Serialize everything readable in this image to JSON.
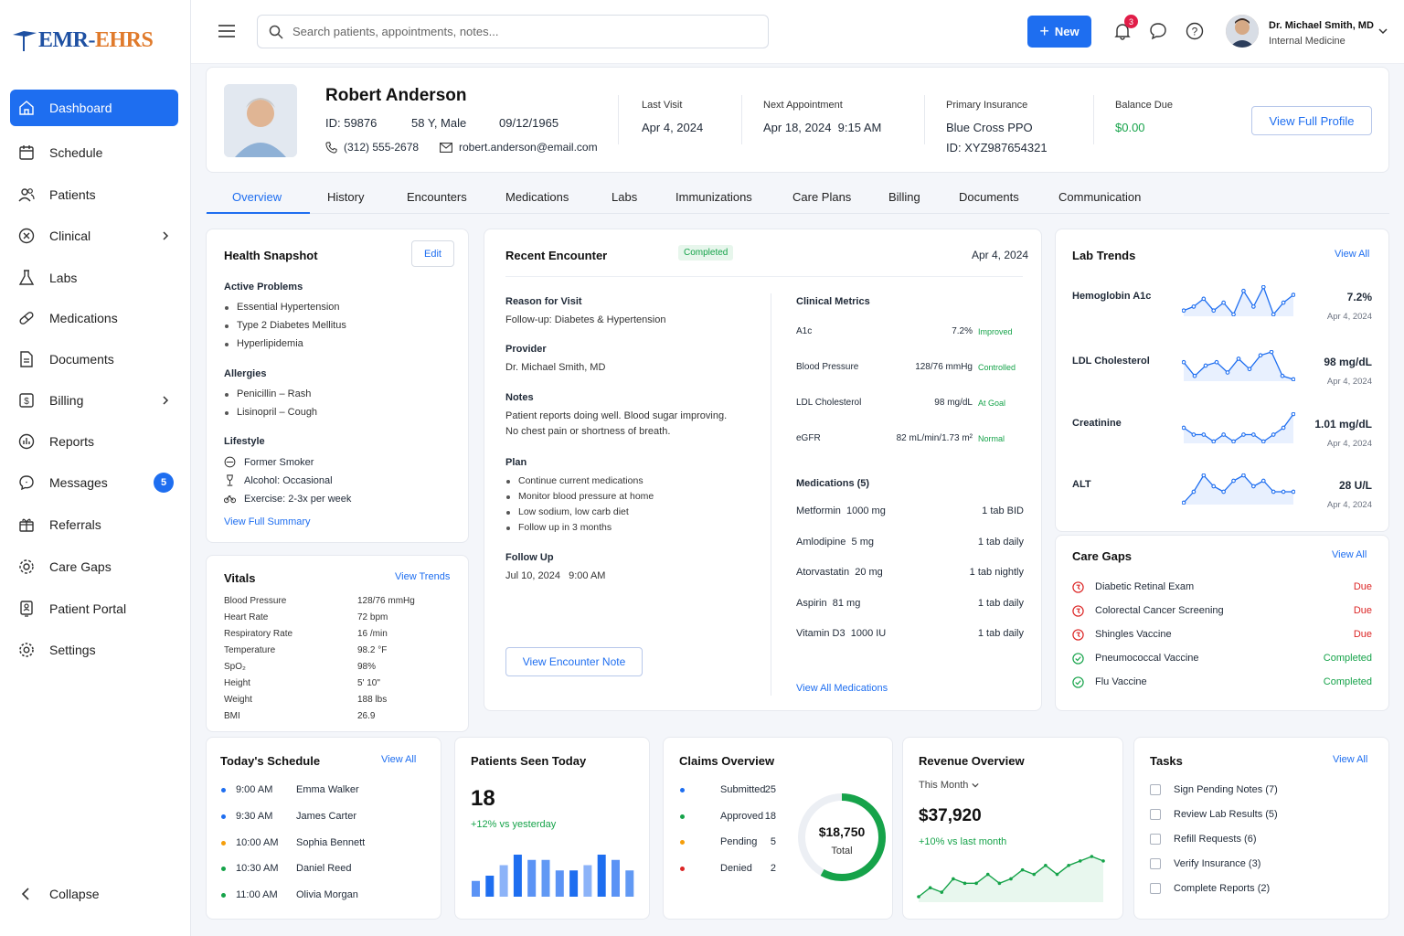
{
  "brand": {
    "logo_prefix": "EMR",
    "logo_sep": "-",
    "logo_suffix": "EHRS"
  },
  "nav": [
    {
      "label": "Dashboard",
      "icon": "home-icon",
      "active": true
    },
    {
      "label": "Schedule",
      "icon": "calendar-icon"
    },
    {
      "label": "Patients",
      "icon": "users-icon"
    },
    {
      "label": "Clinical",
      "icon": "clinical-icon",
      "chevron": true
    },
    {
      "label": "Labs",
      "icon": "flask-icon"
    },
    {
      "label": "Medications",
      "icon": "pill-icon"
    },
    {
      "label": "Documents",
      "icon": "document-icon"
    },
    {
      "label": "Billing",
      "icon": "dollar-icon",
      "chevron": true
    },
    {
      "label": "Reports",
      "icon": "report-icon"
    },
    {
      "label": "Messages",
      "icon": "chat-icon",
      "badge": "5"
    },
    {
      "label": "Referrals",
      "icon": "referral-icon"
    },
    {
      "label": "Care Gaps",
      "icon": "gear-check-icon"
    },
    {
      "label": "Patient Portal",
      "icon": "portal-icon"
    },
    {
      "label": "Settings",
      "icon": "gear-icon"
    }
  ],
  "collapse_label": "Collapse",
  "topbar": {
    "search_placeholder": "Search patients, appointments, notes...",
    "new_label": "New",
    "notif_count": "3",
    "user_name": "Dr. Michael Smith, MD",
    "user_role": "Internal Medicine"
  },
  "patient": {
    "name": "Robert Anderson",
    "id": "ID: 59876",
    "age_sex": "58 Y, Male",
    "dob": "09/12/1965",
    "phone": "(312) 555-2678",
    "email": "robert.anderson@email.com",
    "last_visit_label": "Last Visit",
    "last_visit": "Apr 4, 2024",
    "next_appt_label": "Next Appointment",
    "next_appt": "Apr 18, 2024  9:15 AM",
    "insurance_label": "Primary Insurance",
    "insurance": "Blue Cross PPO",
    "insurance_id": "ID: XYZ987654321",
    "balance_label": "Balance Due",
    "balance": "$0.00",
    "profile_btn": "View Full Profile"
  },
  "tabs": [
    "Overview",
    "History",
    "Encounters",
    "Medications",
    "Labs",
    "Immunizations",
    "Care Plans",
    "Billing",
    "Documents",
    "Communication"
  ],
  "snapshot": {
    "title": "Health Snapshot",
    "edit": "Edit",
    "problems_title": "Active Problems",
    "problems": [
      "Essential Hypertension",
      "Type 2 Diabetes Mellitus",
      "Hyperlipidemia"
    ],
    "allergies_title": "Allergies",
    "allergies": [
      "Penicillin – Rash",
      "Lisinopril – Cough"
    ],
    "lifestyle_title": "Lifestyle",
    "lifestyle": [
      "Former Smoker",
      "Alcohol: Occasional",
      "Exercise: 2-3x per week"
    ],
    "summary_link": "View Full Summary"
  },
  "vitals": {
    "title": "Vitals",
    "link": "View Trends",
    "rows": [
      [
        "Blood Pressure",
        "128/76 mmHg"
      ],
      [
        "Heart Rate",
        "72 bpm"
      ],
      [
        "Respiratory Rate",
        "16 /min"
      ],
      [
        "Temperature",
        "98.2 °F"
      ],
      [
        "SpO₂",
        "98%"
      ],
      [
        "Height",
        "5' 10\""
      ],
      [
        "Weight",
        "188 lbs"
      ],
      [
        "BMI",
        "26.9"
      ]
    ]
  },
  "encounter": {
    "title": "Recent Encounter",
    "status": "Completed",
    "date": "Apr 4, 2024",
    "reason_title": "Reason for Visit",
    "reason": "Follow-up: Diabetes & Hypertension",
    "provider_title": "Provider",
    "provider": "Dr. Michael Smith, MD",
    "notes_title": "Notes",
    "notes1": "Patient reports doing well. Blood sugar improving.",
    "notes2": "No chest pain or shortness of breath.",
    "plan_title": "Plan",
    "plan": [
      "Continue current medications",
      "Monitor blood pressure at home",
      "Low sodium, low carb diet",
      "Follow up in 3 months"
    ],
    "followup_title": "Follow Up",
    "followup": "Jul 10, 2024   9:00 AM",
    "note_btn": "View Encounter Note",
    "metrics_title": "Clinical Metrics",
    "metrics": [
      [
        "A1c",
        "7.2%",
        "Improved"
      ],
      [
        "Blood Pressure",
        "128/76 mmHg",
        "Controlled"
      ],
      [
        "LDL Cholesterol",
        "98 mg/dL",
        "At Goal"
      ],
      [
        "eGFR",
        "82 mL/min/1.73 m²",
        "Normal"
      ]
    ],
    "meds_title": "Medications (5)",
    "meds": [
      [
        "Metformin  1000 mg",
        "1 tab BID"
      ],
      [
        "Amlodipine  5 mg",
        "1 tab daily"
      ],
      [
        "Atorvastatin  20 mg",
        "1 tab nightly"
      ],
      [
        "Aspirin  81 mg",
        "1 tab daily"
      ],
      [
        "Vitamin D3  1000 IU",
        "1 tab daily"
      ]
    ],
    "meds_link": "View All Medications"
  },
  "lab_trends": {
    "title": "Lab Trends",
    "link": "View All",
    "items": [
      {
        "name": "Hemoglobin A1c",
        "value": "7.2%",
        "date": "Apr 4, 2024",
        "trend": [
          3,
          4,
          6,
          3,
          5,
          2,
          8,
          4,
          9,
          2,
          5,
          7
        ]
      },
      {
        "name": "LDL Cholesterol",
        "value": "98 mg/dL",
        "date": "Apr 4, 2024",
        "trend": [
          7,
          3,
          6,
          7,
          4,
          8,
          5,
          9,
          10,
          3,
          2
        ]
      },
      {
        "name": "Creatinine",
        "value": "1.01 mg/dL",
        "date": "Apr 4, 2024",
        "trend": [
          5,
          4,
          4,
          3,
          4,
          3,
          4,
          4,
          3,
          4,
          5,
          7
        ]
      },
      {
        "name": "ALT",
        "value": "28 U/L",
        "date": "Apr 4, 2024",
        "trend": [
          2,
          4,
          7,
          5,
          4,
          6,
          7,
          5,
          6,
          4,
          4,
          4
        ]
      }
    ]
  },
  "care_gaps": {
    "title": "Care Gaps",
    "link": "View All",
    "items": [
      [
        "Diabetic Retinal Exam",
        "Due"
      ],
      [
        "Colorectal Cancer Screening",
        "Due"
      ],
      [
        "Shingles Vaccine",
        "Due"
      ],
      [
        "Pneumococcal Vaccine",
        "Completed"
      ],
      [
        "Flu Vaccine",
        "Completed"
      ]
    ]
  },
  "schedule": {
    "title": "Today's Schedule",
    "link": "View All",
    "items": [
      [
        "9:00 AM",
        "Emma Walker",
        "#1e6ef0"
      ],
      [
        "9:30 AM",
        "James Carter",
        "#1e6ef0"
      ],
      [
        "10:00 AM",
        "Sophia Bennett",
        "#f59e0b"
      ],
      [
        "10:30 AM",
        "Daniel Reed",
        "#16a34a"
      ],
      [
        "11:00 AM",
        "Olivia Morgan",
        "#16a34a"
      ]
    ]
  },
  "seen": {
    "title": "Patients Seen Today",
    "count": "18",
    "delta": "+12% vs yesterday",
    "bars": [
      3,
      4,
      6,
      8,
      7,
      7,
      5,
      5,
      6,
      8,
      7,
      5
    ]
  },
  "claims": {
    "title": "Claims Overview",
    "items": [
      [
        "Submitted",
        "25",
        "#1e6ef0"
      ],
      [
        "Approved",
        "18",
        "#16a34a"
      ],
      [
        "Pending",
        "5",
        "#f59e0b"
      ],
      [
        "Denied",
        "2",
        "#dc2626"
      ]
    ],
    "total": "$18,750",
    "total_label": "Total",
    "approved_fraction": 0.58
  },
  "revenue": {
    "title": "Revenue Overview",
    "period": "This Month",
    "amount": "$37,920",
    "delta": "+10% vs last month",
    "trend": [
      1,
      3,
      2,
      5,
      4,
      4,
      6,
      4,
      5,
      7,
      6,
      8,
      6,
      8,
      9,
      10,
      9
    ]
  },
  "tasks": {
    "title": "Tasks",
    "link": "View All",
    "items": [
      "Sign Pending Notes (7)",
      "Review Lab Results (5)",
      "Refill Requests (6)",
      "Verify Insurance (3)",
      "Complete Reports (2)"
    ]
  }
}
